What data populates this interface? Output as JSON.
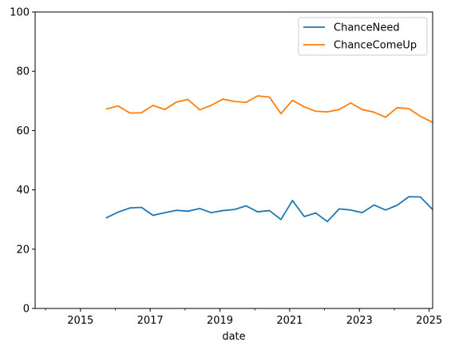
{
  "chart_data": {
    "type": "line",
    "xlabel": "date",
    "ylabel": "",
    "xlim": [
      2013.7,
      2025.1
    ],
    "ylim": [
      0,
      100
    ],
    "x_ticks": [
      2015,
      2017,
      2019,
      2021,
      2023,
      2025
    ],
    "x_tick_labels": [
      "2015",
      "2017",
      "2019",
      "2021",
      "2023",
      "2025"
    ],
    "x_minor_ticks": [
      2014,
      2016,
      2018,
      2020,
      2022,
      2024
    ],
    "y_ticks": [
      0,
      20,
      40,
      60,
      80,
      100
    ],
    "y_tick_labels": [
      "0",
      "20",
      "40",
      "60",
      "80",
      "100"
    ],
    "grid": false,
    "legend_position": "top-right",
    "x": [
      2015.75,
      2016.08,
      2016.42,
      2016.75,
      2017.08,
      2017.42,
      2017.75,
      2018.08,
      2018.42,
      2018.75,
      2019.08,
      2019.42,
      2019.75,
      2020.08,
      2020.42,
      2020.75,
      2021.08,
      2021.42,
      2021.75,
      2022.08,
      2022.42,
      2022.75,
      2023.08,
      2023.42,
      2023.75,
      2024.08,
      2024.42,
      2024.75,
      2025.08
    ],
    "series": [
      {
        "name": "ChanceNeed",
        "color": "#1f77b4",
        "values": [
          30.6,
          32.5,
          33.9,
          34.1,
          31.4,
          32.3,
          33.1,
          32.8,
          33.7,
          32.3,
          33.0,
          33.4,
          34.6,
          32.6,
          33.0,
          30.0,
          36.4,
          31.0,
          32.2,
          29.3,
          33.6,
          33.2,
          32.3,
          34.9,
          33.2,
          34.8,
          37.7,
          37.6,
          33.6
        ]
      },
      {
        "name": "ChanceComeUp",
        "color": "#ff7f0e",
        "values": [
          67.3,
          68.3,
          65.9,
          66.0,
          68.5,
          67.1,
          69.6,
          70.5,
          67.0,
          68.5,
          70.6,
          69.8,
          69.5,
          71.7,
          71.3,
          65.7,
          70.2,
          68.0,
          66.5,
          66.3,
          67.1,
          69.3,
          67.1,
          66.2,
          64.5,
          67.7,
          67.4,
          64.8,
          62.9
        ]
      }
    ]
  }
}
